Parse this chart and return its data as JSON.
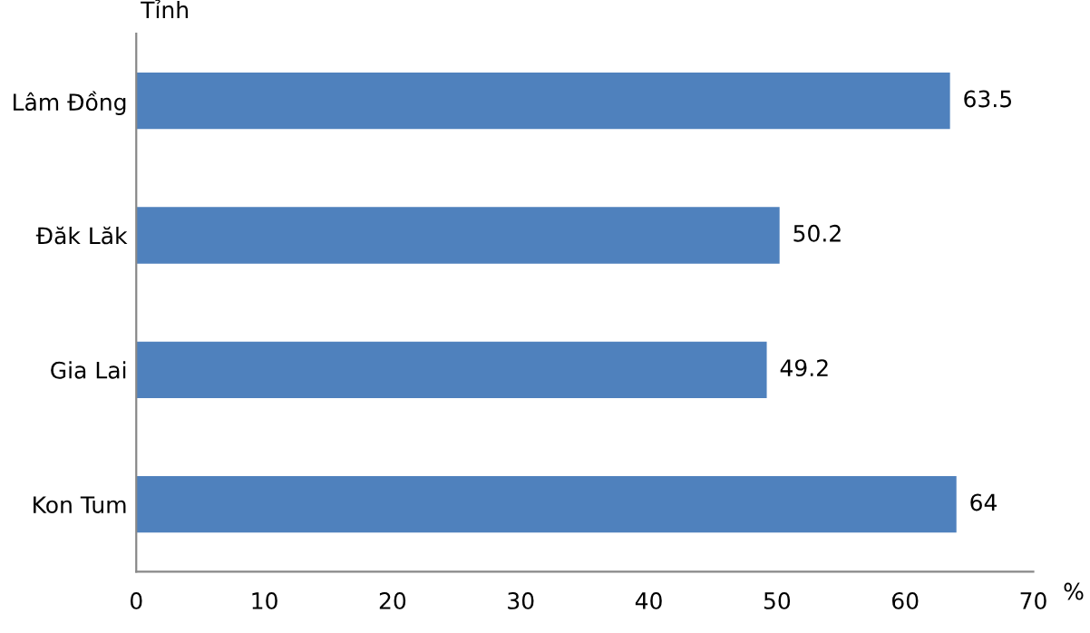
{
  "chart_data": {
    "type": "bar",
    "orientation": "horizontal",
    "ylabel": "Tỉnh",
    "xlabel": "%",
    "categories": [
      "Lâm Đồng",
      "Đăk Lăk",
      "Gia Lai",
      "Kon Tum"
    ],
    "values": [
      63.5,
      50.2,
      49.2,
      64
    ],
    "color": "#4f81bd",
    "xlim": [
      0,
      70
    ],
    "xticks": [
      0,
      10,
      20,
      30,
      40,
      50,
      60,
      70
    ],
    "data_labels": true,
    "grid": false,
    "legend": false
  }
}
